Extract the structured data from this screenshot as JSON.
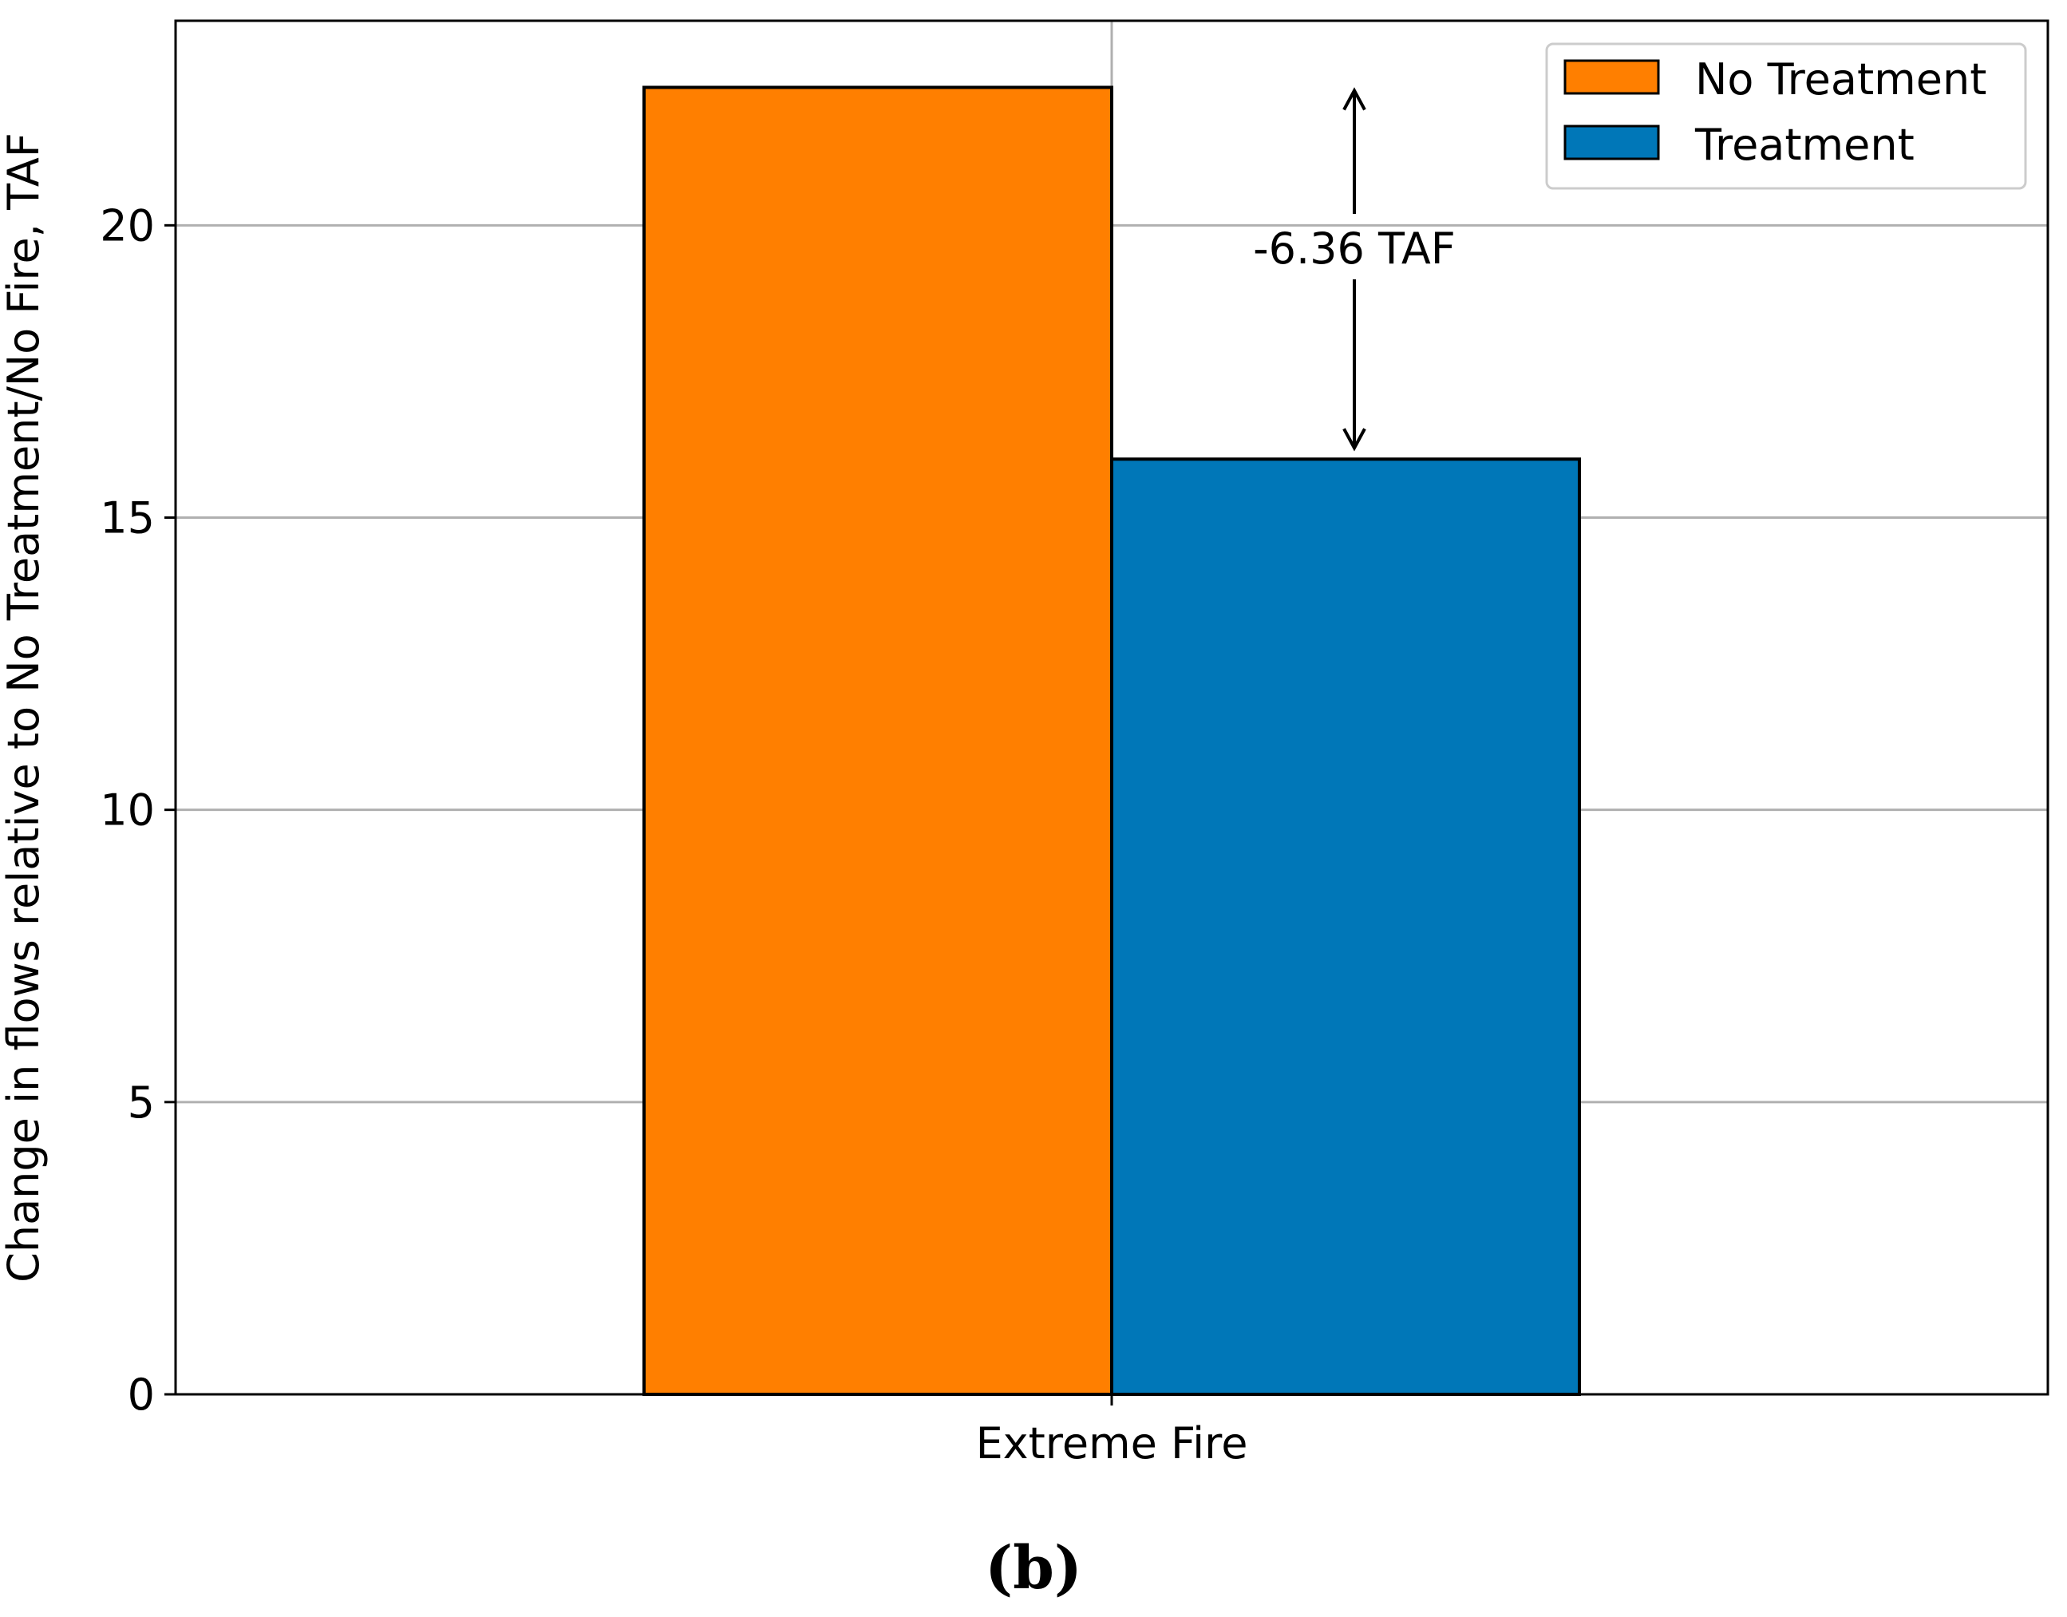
{
  "chart_data": {
    "type": "bar",
    "categories": [
      "Extreme Fire"
    ],
    "series": [
      {
        "name": "No Treatment",
        "values": [
          22.36
        ],
        "color": "#ff7f00"
      },
      {
        "name": "Treatment",
        "values": [
          16.0
        ],
        "color": "#0077b8"
      }
    ],
    "ylabel": "Change in flows relative to No Treatment/No Fire, TAF",
    "xlabel": "",
    "ylim": [
      0,
      23.5
    ],
    "yticks": [
      0,
      5,
      10,
      15,
      20
    ],
    "grid": true,
    "legend_position": "top-right",
    "annotation": {
      "text": "-6.36 TAF",
      "from": 22.36,
      "to": 16.0
    },
    "panel_label": "(b)"
  }
}
